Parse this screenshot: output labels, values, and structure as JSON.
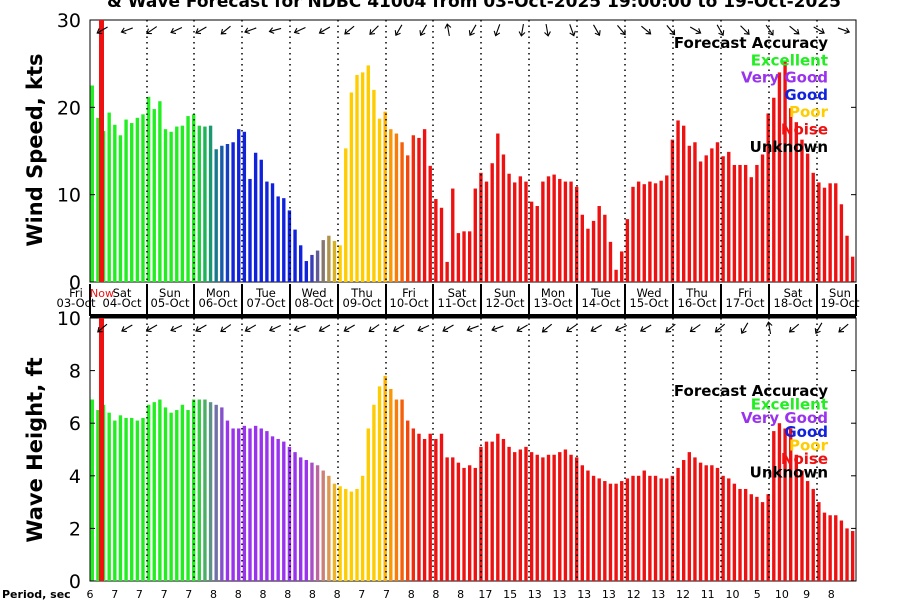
{
  "title": "& Wave Forecast for NDBC 41004 from 03-Oct-2025 19:00:00 to 19-Oct-2025",
  "legend": {
    "title": "Forecast Accuracy",
    "items": [
      {
        "label": "Excellent",
        "color": "#22ee22"
      },
      {
        "label": "Very Good",
        "color": "#9933ee"
      },
      {
        "label": "Good",
        "color": "#1122dd"
      },
      {
        "label": "Poor",
        "color": "#ffcc00"
      },
      {
        "label": "Noise",
        "color": "#ee1111"
      },
      {
        "label": "Unknown",
        "color": "#000000"
      }
    ]
  },
  "date_labels": [
    {
      "day": "Fri",
      "date": "03-Oct"
    },
    {
      "day": "Sat",
      "date": "04-Oct"
    },
    {
      "day": "Sun",
      "date": "05-Oct"
    },
    {
      "day": "Mon",
      "date": "06-Oct"
    },
    {
      "day": "Tue",
      "date": "07-Oct"
    },
    {
      "day": "Wed",
      "date": "08-Oct"
    },
    {
      "day": "Thu",
      "date": "09-Oct"
    },
    {
      "day": "Fri",
      "date": "10-Oct"
    },
    {
      "day": "Sat",
      "date": "11-Oct"
    },
    {
      "day": "Sun",
      "date": "12-Oct"
    },
    {
      "day": "Mon",
      "date": "13-Oct"
    },
    {
      "day": "Tue",
      "date": "14-Oct"
    },
    {
      "day": "Wed",
      "date": "15-Oct"
    },
    {
      "day": "Thu",
      "date": "16-Oct"
    },
    {
      "day": "Fri",
      "date": "17-Oct"
    },
    {
      "day": "Sat",
      "date": "18-Oct"
    },
    {
      "day": "Sun",
      "date": "19-Oct"
    }
  ],
  "now_label": "Now",
  "period_label": "Period, sec",
  "period_values": [
    "6",
    "7",
    "7",
    "7",
    "7",
    "8",
    "8",
    "8",
    "8",
    "8",
    "8",
    "7",
    "7",
    "8",
    "8",
    "8",
    "17",
    "15",
    "13",
    "13",
    "13",
    "13",
    "12",
    "13",
    "12",
    "11",
    "10",
    "5",
    "10",
    "9",
    "8"
  ],
  "chart_data": [
    {
      "type": "bar",
      "ylabel": "Wind Speed, kts",
      "ylim": [
        0,
        30
      ],
      "yticks": [
        0,
        10,
        20,
        30
      ],
      "values": [
        22.5,
        18.8,
        17.3,
        19.4,
        18.0,
        16.8,
        18.6,
        18.2,
        18.8,
        19.2,
        21.2,
        19.8,
        20.7,
        17.5,
        17.2,
        17.8,
        17.9,
        19.0,
        19.2,
        17.9,
        17.8,
        17.9,
        15.2,
        15.6,
        15.8,
        16.0,
        17.5,
        17.2,
        11.8,
        14.8,
        14.0,
        11.5,
        11.3,
        9.8,
        9.6,
        8.2,
        6.0,
        4.2,
        2.4,
        3.1,
        3.6,
        4.8,
        5.3,
        4.7,
        4.2,
        15.3,
        21.7,
        23.7,
        24.0,
        24.8,
        22.0,
        18.7,
        19.5,
        17.5,
        17.0,
        16.0,
        14.5,
        16.8,
        16.5,
        17.5,
        13.3,
        9.5,
        8.5,
        2.3,
        10.7,
        5.6,
        5.8,
        5.8,
        10.7,
        12.5,
        11.5,
        13.6,
        17.0,
        14.6,
        12.4,
        11.4,
        12.1,
        11.5,
        9.2,
        8.7,
        11.5,
        12.1,
        12.3,
        11.8,
        11.5,
        11.5,
        10.9,
        7.7,
        6.1,
        7.0,
        8.7,
        7.7,
        4.6,
        1.4,
        3.5,
        7.2,
        10.9,
        11.5,
        11.2,
        11.5,
        11.3,
        11.6,
        12.2,
        16.3,
        18.5,
        17.9,
        15.6,
        16.0,
        13.8,
        14.5,
        15.3,
        16.0,
        14.4,
        14.9,
        13.4,
        13.4,
        13.4,
        12.0,
        13.4,
        14.6,
        19.3,
        21.1,
        24.0,
        25.2,
        19.9,
        18.3,
        16.3,
        14.7,
        12.5,
        11.4,
        10.8,
        11.3,
        11.3,
        8.9,
        5.3,
        2.9
      ]
    },
    {
      "type": "bar",
      "ylabel": "Wave Height, ft",
      "ylim": [
        0,
        10
      ],
      "yticks": [
        0,
        2,
        4,
        6,
        8,
        10
      ],
      "values": [
        6.9,
        6.5,
        6.7,
        6.4,
        6.1,
        6.3,
        6.2,
        6.2,
        6.1,
        6.2,
        6.7,
        6.8,
        6.9,
        6.6,
        6.4,
        6.5,
        6.7,
        6.5,
        6.9,
        6.9,
        6.9,
        6.8,
        6.7,
        6.6,
        6.1,
        5.8,
        5.8,
        5.9,
        5.8,
        5.9,
        5.8,
        5.7,
        5.5,
        5.4,
        5.3,
        5.1,
        4.9,
        4.7,
        4.6,
        4.5,
        4.4,
        4.2,
        4.0,
        3.7,
        3.6,
        3.5,
        3.4,
        3.5,
        4.0,
        5.8,
        6.7,
        7.4,
        7.8,
        7.3,
        6.9,
        6.9,
        6.1,
        5.8,
        5.6,
        5.4,
        5.6,
        5.4,
        5.6,
        4.7,
        4.7,
        4.5,
        4.3,
        4.4,
        4.3,
        5.1,
        5.3,
        5.3,
        5.6,
        5.4,
        5.1,
        4.9,
        5.0,
        5.1,
        4.9,
        4.8,
        4.7,
        4.8,
        4.8,
        4.9,
        5.0,
        4.8,
        4.7,
        4.4,
        4.2,
        4.0,
        3.9,
        3.8,
        3.7,
        3.7,
        3.8,
        3.9,
        4.0,
        4.0,
        4.2,
        4.0,
        4.0,
        3.9,
        3.9,
        4.0,
        4.3,
        4.6,
        4.9,
        4.7,
        4.5,
        4.4,
        4.4,
        4.3,
        4.0,
        3.9,
        3.7,
        3.5,
        3.5,
        3.3,
        3.2,
        3.0,
        3.3,
        5.7,
        6.0,
        5.8,
        5.8,
        4.8,
        4.2,
        3.8,
        3.5,
        3.0,
        2.6,
        2.5,
        2.5,
        2.3,
        2.0,
        1.9
      ]
    }
  ]
}
